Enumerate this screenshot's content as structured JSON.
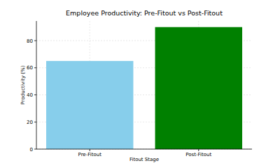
{
  "chart_data": {
    "type": "bar",
    "title": "Employee Productivity: Pre-Fitout vs Post-Fitout",
    "x_label": "Fitout Stage",
    "y_label": "Productivity (%)",
    "categories": [
      "Pre-Fitout",
      "Post-Fitout"
    ],
    "values": [
      65,
      90
    ],
    "colors": [
      "#87ceeb",
      "#008000"
    ],
    "ylim": [
      0,
      94.5
    ],
    "yticks": [
      0,
      20,
      40,
      60,
      80
    ],
    "grid": true
  }
}
